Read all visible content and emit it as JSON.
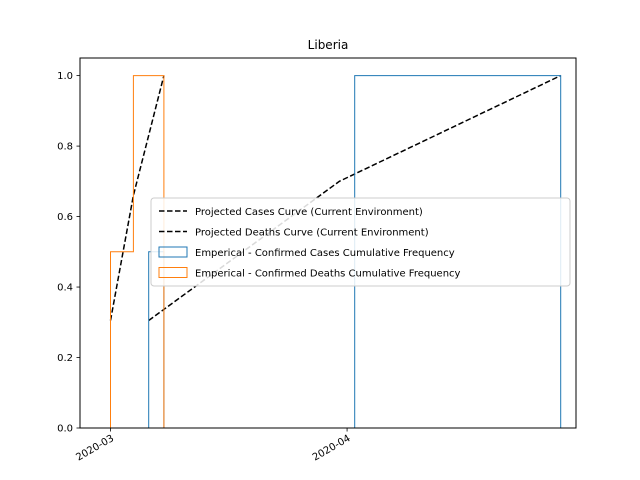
{
  "chart_data": {
    "type": "line",
    "title": "Liberia",
    "xlabel": "",
    "ylabel": "",
    "x_range": [
      "2020-02-26",
      "2020-05-01"
    ],
    "ylim": [
      0,
      1.05
    ],
    "x_ticks": [
      {
        "value": "2020-03-01",
        "label": "2020-03"
      },
      {
        "value": "2020-04-01",
        "label": "2020-04"
      }
    ],
    "y_ticks": [
      {
        "value": 0.0,
        "label": "0.0"
      },
      {
        "value": 0.2,
        "label": "0.2"
      },
      {
        "value": 0.4,
        "label": "0.4"
      },
      {
        "value": 0.6,
        "label": "0.6"
      },
      {
        "value": 0.8,
        "label": "0.8"
      },
      {
        "value": 1.0,
        "label": "1.0"
      }
    ],
    "grid": false,
    "legend_position": "center-right",
    "series": [
      {
        "name": "Projected Cases Curve (Current Environment)",
        "kind": "line",
        "style": "dashed",
        "color": "#000000",
        "points": [
          [
            "2020-03-06",
            0.305
          ],
          [
            "2020-03-31",
            0.7
          ],
          [
            "2020-04-29",
            1.0
          ]
        ]
      },
      {
        "name": "Projected Deaths Curve (Current Environment)",
        "kind": "line",
        "style": "dashed",
        "color": "#000000",
        "points": [
          [
            "2020-03-01",
            0.305
          ],
          [
            "2020-03-04",
            0.66
          ],
          [
            "2020-03-08",
            1.0
          ]
        ]
      },
      {
        "name": "Emperical - Confirmed Cases Cumulative Frequency",
        "kind": "step",
        "color": "#1f77b4",
        "points": [
          [
            "2020-03-06",
            0.0
          ],
          [
            "2020-03-06",
            0.5
          ],
          [
            "2020-03-08",
            0.5
          ],
          [
            "2020-03-08",
            0.0
          ],
          [
            "2020-04-02",
            0.0
          ],
          [
            "2020-04-02",
            1.0
          ],
          [
            "2020-04-29",
            1.0
          ],
          [
            "2020-04-29",
            0.0
          ]
        ]
      },
      {
        "name": "Emperical - Confirmed Deaths Cumulative Frequency",
        "kind": "step",
        "color": "#ff7f0e",
        "points": [
          [
            "2020-03-01",
            0.0
          ],
          [
            "2020-03-01",
            0.5
          ],
          [
            "2020-03-04",
            0.5
          ],
          [
            "2020-03-04",
            1.0
          ],
          [
            "2020-03-08",
            1.0
          ],
          [
            "2020-03-08",
            0.0
          ]
        ]
      }
    ]
  }
}
